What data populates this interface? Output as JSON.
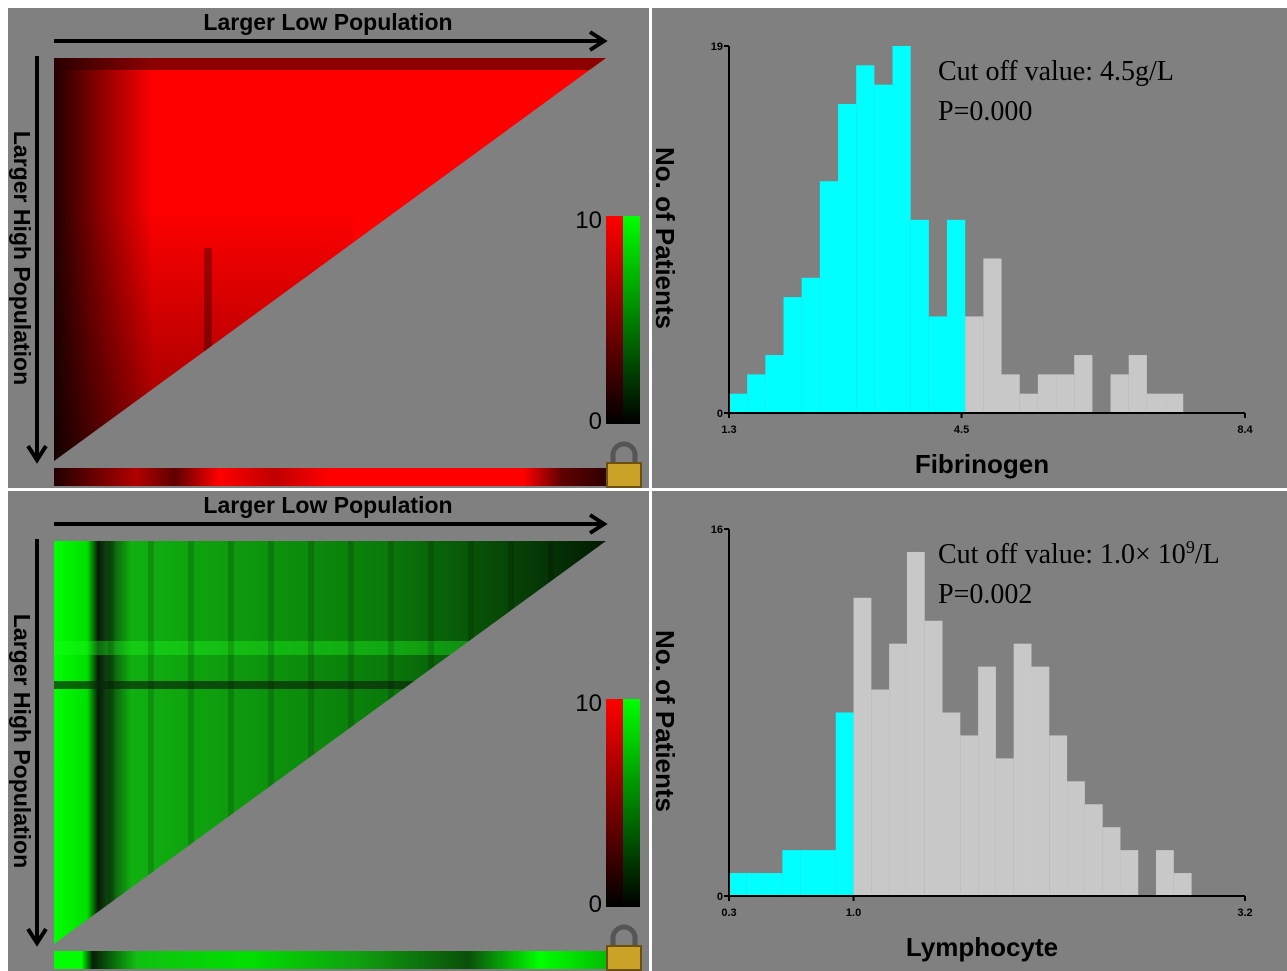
{
  "colors": {
    "background": "#808080",
    "red": "#ff0000",
    "green": "#00ff00",
    "low_group": "#00ffff",
    "high_group": "#c8c8c8"
  },
  "heatmaps": [
    {
      "id": "top",
      "color_scheme": "red",
      "top_label": "Larger Low Population",
      "side_label": "Larger High Population",
      "scale_max": "10",
      "scale_min": "0",
      "lock_icon": "lock-icon"
    },
    {
      "id": "bottom",
      "color_scheme": "green",
      "top_label": "Larger Low Population",
      "side_label": "Larger High Population",
      "scale_max": "10",
      "scale_min": "0",
      "lock_icon": "lock-icon"
    }
  ],
  "chart_data": [
    {
      "type": "bar",
      "title": "",
      "xlabel": "Fibrinogen",
      "ylabel": "No. of Patients",
      "xlim": [
        1.3,
        8.4
      ],
      "ylim": [
        0,
        19
      ],
      "x_ticks": [
        "1.3",
        "4.5",
        "8.4"
      ],
      "y_ticks": [
        "0",
        "19"
      ],
      "cutoff": 4.5,
      "annotation": [
        "Cut off value:  4.5g/L",
        "P=0.000"
      ],
      "bin_width": 0.25,
      "bins_start": 1.3,
      "values": [
        1,
        2,
        3,
        6,
        7,
        12,
        16,
        18,
        17,
        19,
        10,
        5,
        10,
        5,
        8,
        2,
        1,
        2,
        2,
        3,
        0,
        2,
        3,
        1,
        1,
        0
      ]
    },
    {
      "type": "bar",
      "title": "",
      "xlabel": "Lymphocyte",
      "ylabel": "No. of Patients",
      "xlim": [
        0.3,
        3.2
      ],
      "ylim": [
        0,
        16
      ],
      "x_ticks": [
        "0.3",
        "1.0",
        "3.2"
      ],
      "y_ticks": [
        "0",
        "16"
      ],
      "cutoff": 1.0,
      "annotation": [
        "Cut off value:  1.0× 10",
        "9",
        "/L",
        "P=0.002"
      ],
      "bin_width": 0.1,
      "bins_start": 0.3,
      "values": [
        1,
        1,
        1,
        2,
        2,
        2,
        8,
        13,
        9,
        11,
        15,
        12,
        8,
        7,
        10,
        6,
        11,
        10,
        7,
        5,
        4,
        3,
        2,
        0,
        2,
        1,
        0
      ]
    }
  ]
}
